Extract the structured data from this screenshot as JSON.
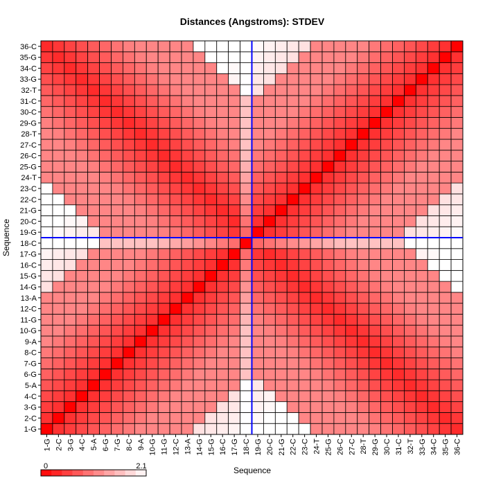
{
  "chart_data": {
    "type": "heatmap",
    "title": "Distances (Angstroms):  STDEV",
    "xlabel": "Sequence",
    "ylabel": "Sequence",
    "labels": [
      "1-G",
      "2-C",
      "3-G",
      "4-C",
      "5-A",
      "6-G",
      "7-G",
      "8-C",
      "9-A",
      "10-G",
      "11-G",
      "12-C",
      "13-A",
      "14-G",
      "15-G",
      "16-C",
      "17-G",
      "18-C",
      "19-G",
      "20-C",
      "21-G",
      "22-C",
      "23-C",
      "24-T",
      "25-G",
      "26-C",
      "27-C",
      "28-T",
      "29-G",
      "30-C",
      "31-C",
      "32-T",
      "33-G",
      "34-C",
      "35-G",
      "36-C"
    ],
    "colorbar": {
      "min_label": "0",
      "max_label": "2.1",
      "min": 0,
      "max": 2.1
    },
    "crosshair": {
      "row_label": "18-C",
      "col_label": "18-C",
      "color": "#0000ff"
    },
    "matrix_note": "Symmetric matrix of standard deviations (Angstroms); values approximated from cell shading."
  }
}
